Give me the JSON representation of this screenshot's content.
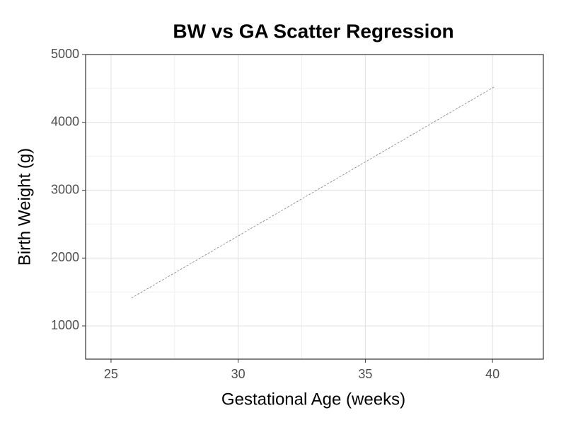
{
  "chart_data": {
    "type": "line",
    "title": "BW vs GA Scatter Regression",
    "x_label": "Gestational Age (weeks)",
    "y_label": "Birth Weight (g)",
    "x": [
      25.8,
      40.1
    ],
    "values": [
      1410,
      4530
    ],
    "color": "#808080",
    "dashed": true,
    "xlim": [
      24,
      42
    ],
    "xticks": [
      25,
      30,
      35,
      40
    ],
    "x_minor_ticks": [
      27.5,
      32.5,
      37.5
    ],
    "ylim": [
      510,
      5000
    ],
    "yticks": [
      1000,
      2000,
      3000,
      4000,
      5000
    ],
    "y_minor_ticks": [
      1500,
      2500,
      3500,
      4500
    ],
    "grid": true
  }
}
